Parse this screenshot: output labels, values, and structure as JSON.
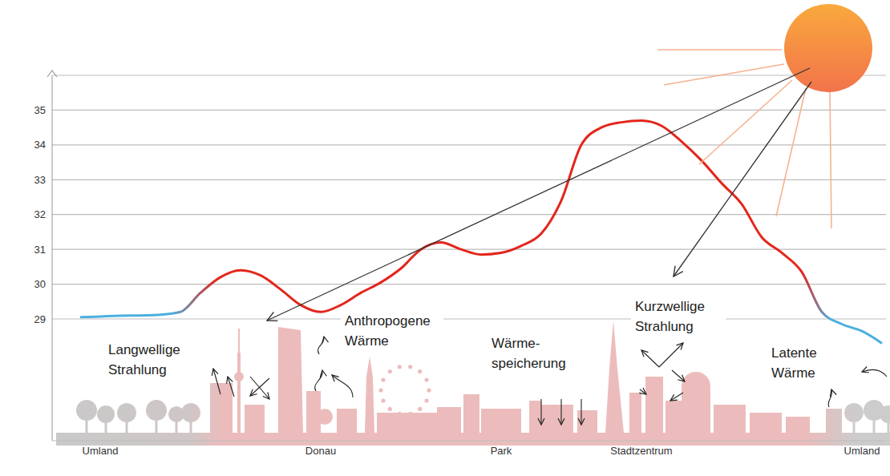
{
  "chart_data": {
    "type": "line",
    "categories": [
      null,
      "Umland",
      null,
      null,
      null,
      null,
      null,
      null,
      null,
      null,
      null,
      null,
      "Donau",
      null,
      null,
      null,
      null,
      null,
      null,
      null,
      null,
      "Park",
      null,
      null,
      null,
      null,
      null,
      null,
      "Stadtzentrum",
      null,
      null,
      null,
      null,
      null,
      null,
      null,
      null,
      null,
      null,
      "Umland",
      null
    ],
    "values": [
      29.05,
      29.07,
      29.09,
      29.1,
      29.12,
      29.2,
      29.75,
      30.2,
      30.4,
      30.25,
      29.85,
      29.4,
      29.2,
      29.4,
      29.75,
      30.05,
      30.45,
      31.0,
      31.2,
      31.0,
      30.85,
      30.9,
      31.1,
      31.45,
      32.4,
      34.0,
      34.5,
      34.65,
      34.7,
      34.55,
      34.1,
      33.55,
      32.9,
      32.3,
      31.35,
      30.9,
      30.35,
      29.2,
      28.85,
      28.65,
      28.3
    ],
    "color": "#e3261c",
    "ylim": [
      25.5,
      36
    ],
    "yticks": [
      29,
      30,
      31,
      32,
      33,
      34,
      35
    ],
    "grid": true,
    "annotations": [
      [
        "Langwellige",
        "Strahlung"
      ],
      [
        "Anthropogene",
        "Wärme"
      ],
      [
        "Wärme-",
        "speicherung"
      ],
      [
        "Kurzwellige",
        "Strahlung"
      ],
      [
        "Latente",
        "Wärme"
      ]
    ]
  }
}
